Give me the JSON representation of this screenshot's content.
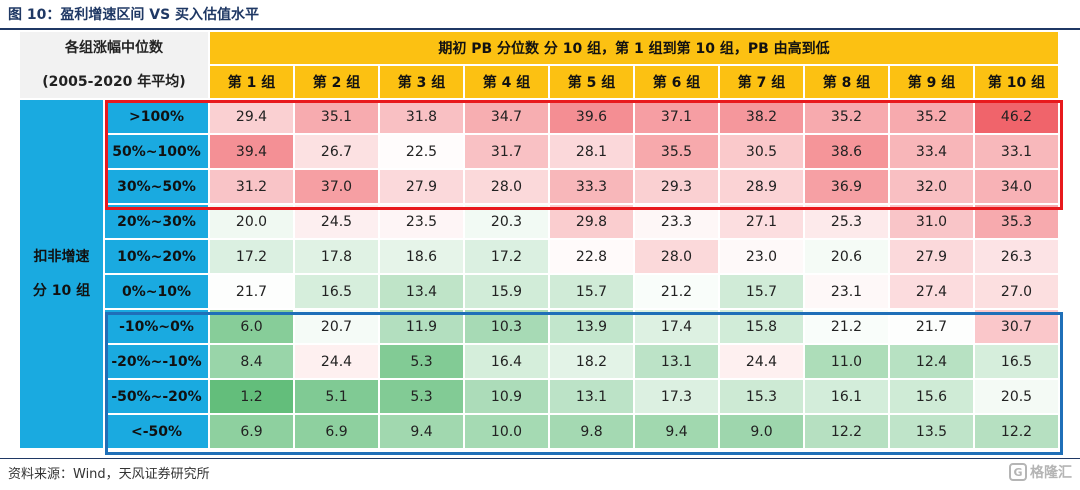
{
  "title": "图 10：盈利增速区间 VS 买入估值水平",
  "header": {
    "left_line1": "各组涨幅中位数",
    "left_line2": "(2005-2020 年平均)",
    "top": "期初 PB 分位数   分 10 组，第 1 组到第 10 组，PB 由高到低",
    "groups": [
      "第 1 组",
      "第 2 组",
      "第 3 组",
      "第 4 组",
      "第 5 组",
      "第 6 组",
      "第 7 组",
      "第 8 组",
      "第 9 组",
      "第 10 组"
    ]
  },
  "side": {
    "line1": "扣非增速",
    "line2": "分 10 组"
  },
  "rows": [
    {
      "label": ">100%",
      "values": [
        "29.4",
        "35.1",
        "31.8",
        "34.7",
        "39.6",
        "37.1",
        "38.2",
        "35.2",
        "35.2",
        "46.2"
      ]
    },
    {
      "label": "50%~100%",
      "values": [
        "39.4",
        "26.7",
        "22.5",
        "31.7",
        "28.1",
        "35.5",
        "30.5",
        "38.6",
        "33.4",
        "33.1"
      ]
    },
    {
      "label": "30%~50%",
      "values": [
        "31.2",
        "37.0",
        "27.9",
        "28.0",
        "33.3",
        "29.3",
        "28.9",
        "36.9",
        "32.0",
        "34.0"
      ]
    },
    {
      "label": "20%~30%",
      "values": [
        "20.0",
        "24.5",
        "23.5",
        "20.3",
        "29.8",
        "23.3",
        "27.1",
        "25.3",
        "31.0",
        "35.3"
      ]
    },
    {
      "label": "10%~20%",
      "values": [
        "17.2",
        "17.8",
        "18.6",
        "17.2",
        "22.8",
        "28.0",
        "23.0",
        "20.6",
        "27.9",
        "26.3"
      ]
    },
    {
      "label": "0%~10%",
      "values": [
        "21.7",
        "16.5",
        "13.4",
        "15.9",
        "15.7",
        "21.2",
        "15.7",
        "23.1",
        "27.4",
        "27.0"
      ]
    },
    {
      "label": "-10%~0%",
      "values": [
        "6.0",
        "20.7",
        "11.9",
        "10.3",
        "13.9",
        "17.4",
        "15.8",
        "21.2",
        "21.7",
        "30.7"
      ]
    },
    {
      "label": "-20%~-10%",
      "values": [
        "8.4",
        "24.4",
        "5.3",
        "16.4",
        "18.2",
        "13.1",
        "24.4",
        "11.0",
        "12.4",
        "16.5"
      ]
    },
    {
      "label": "-50%~-20%",
      "values": [
        "1.2",
        "5.1",
        "5.3",
        "10.9",
        "13.1",
        "17.3",
        "15.3",
        "16.1",
        "15.6",
        "20.5"
      ]
    },
    {
      "label": "<-50%",
      "values": [
        "6.9",
        "6.9",
        "9.4",
        "10.0",
        "9.8",
        "9.4",
        "9.0",
        "12.2",
        "13.5",
        "12.2"
      ]
    }
  ],
  "colors": {
    "title": "#1f3864",
    "header_yellow": "#fcc112",
    "side_blue": "#1aaae0",
    "high_red": "#f0646b",
    "mid_white": "#ffffff",
    "low_green": "#63be7b",
    "red_box": "#e8191d",
    "blue_box": "#1f6fb8"
  },
  "source": "资料来源：Wind，天风证券研究所",
  "watermark": {
    "icon": "gelonghui-logo-icon",
    "text": "格隆汇"
  }
}
